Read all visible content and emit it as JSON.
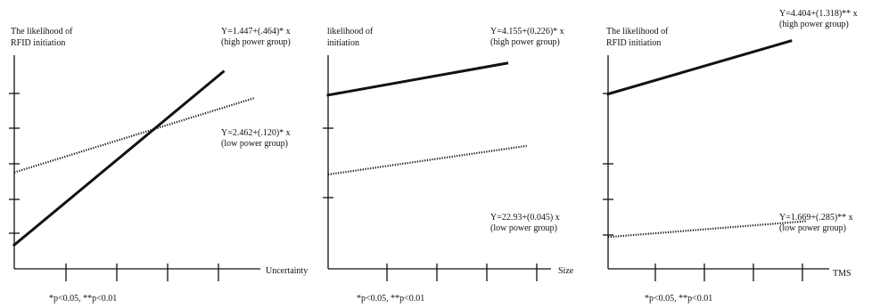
{
  "chart_data": [
    {
      "type": "line",
      "ylabel": [
        "The likelihood of",
        "RFID initiation"
      ],
      "xlabel": "Uncertainty",
      "note": "*p<0.05, **p<0.01",
      "xlim": [
        0,
        4.4
      ],
      "ylim": [
        0,
        4.2
      ],
      "series": [
        {
          "name": "high power group",
          "equation": "Y=1.447+(.464)* x",
          "x": [
            0,
            3.75
          ],
          "y": [
            0.45,
            3.72
          ],
          "color": "#111111",
          "style": "solid"
        },
        {
          "name": "low power group",
          "equation": "Y=2.462+(.120)* x",
          "x": [
            0,
            4.3
          ],
          "y": [
            1.82,
            3.22
          ],
          "color": "#111111",
          "style": "dotted"
        }
      ]
    },
    {
      "type": "line",
      "ylabel": [
        " likelihood of",
        " initiation"
      ],
      "xlabel": "Size",
      "note": "*p<0.05, **p<0.01",
      "xlim": [
        0,
        4.4
      ],
      "ylim": [
        0,
        4.2
      ],
      "series": [
        {
          "name": "high power group",
          "equation": "Y=4.155+(0.226)* x",
          "x": [
            0,
            3.6
          ],
          "y": [
            3.28,
            3.88
          ],
          "color": "#111111",
          "style": "solid"
        },
        {
          "name": "low power group",
          "equation": "Y=22.93+(0.045) x",
          "x": [
            0,
            4.0
          ],
          "y": [
            1.78,
            2.32
          ],
          "color": "#111111",
          "style": "dotted"
        }
      ]
    },
    {
      "type": "line",
      "ylabel": [
        "The likelihood of",
        "RFID initiation"
      ],
      "xlabel": "TMS",
      "note": "*p<0.05, **p<0.01",
      "xlim": [
        0,
        4.4
      ],
      "ylim": [
        0,
        4.2
      ],
      "series": [
        {
          "name": "high power group",
          "equation": "Y=4.404+(1.318)** x",
          "x": [
            0,
            3.4
          ],
          "y": [
            3.3,
            4.3
          ],
          "color": "#111111",
          "style": "solid"
        },
        {
          "name": "low power group",
          "equation": "Y=1.669+(.285)** x",
          "x": [
            0,
            3.7
          ],
          "y": [
            0.6,
            0.9
          ],
          "color": "#111111",
          "style": "dotted"
        }
      ]
    }
  ]
}
